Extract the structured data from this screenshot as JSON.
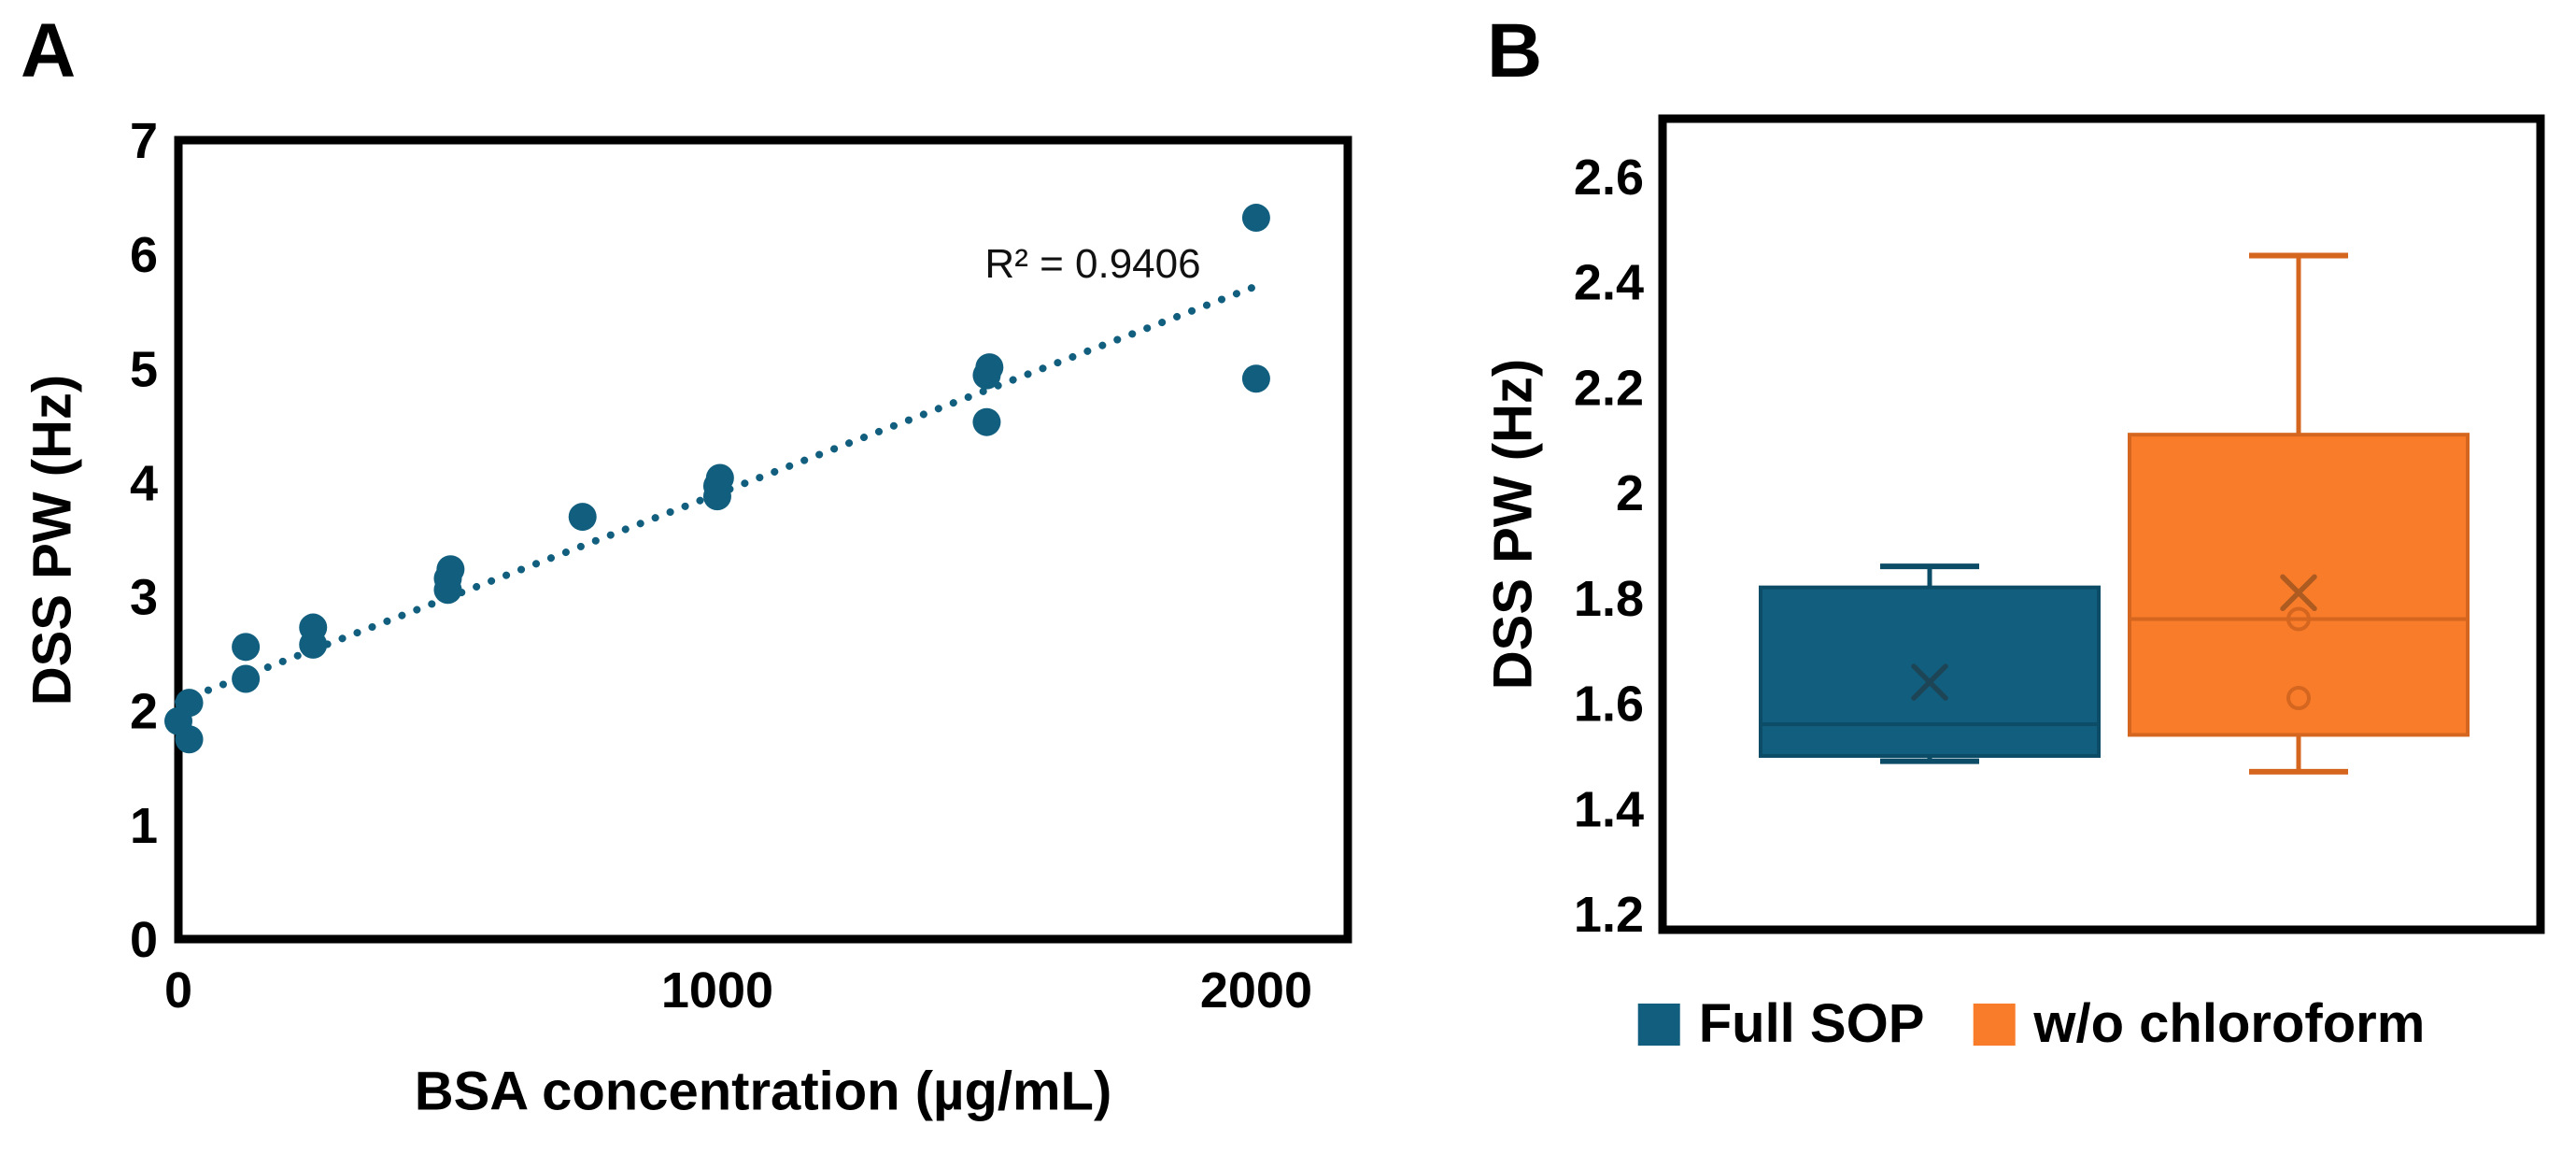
{
  "figure": {
    "background": "#ffffff",
    "colors": {
      "teal": "#115E7E",
      "teal_border": "#0C4C66",
      "teal_mean": "#1E4556",
      "orange": "#F87C2A",
      "orange_border": "#D5661F",
      "orange_mean": "#AE5B21",
      "axis": "#000000",
      "text": "#000000"
    }
  },
  "panel_a": {
    "label": "A",
    "y_axis_title": "DSS PW (Hz)",
    "x_axis_title": "BSA concentration (µg/mL)",
    "annotation_r2": "R² = 0.9406",
    "chart_data": {
      "type": "scatter",
      "title": "",
      "xlabel": "BSA concentration (µg/mL)",
      "ylabel": "DSS PW (Hz)",
      "xlim": [
        0,
        2170
      ],
      "ylim": [
        0,
        7
      ],
      "x_ticks": [
        0,
        1000,
        2000
      ],
      "y_ticks": [
        0,
        1,
        2,
        3,
        4,
        5,
        6,
        7
      ],
      "grid": false,
      "r_squared": 0.9406,
      "points": [
        [
          0,
          1.91
        ],
        [
          20,
          2.07
        ],
        [
          20,
          1.75
        ],
        [
          125,
          2.28
        ],
        [
          125,
          2.56
        ],
        [
          250,
          2.58
        ],
        [
          250,
          2.73
        ],
        [
          500,
          3.06
        ],
        [
          500,
          3.16
        ],
        [
          505,
          3.24
        ],
        [
          750,
          3.7
        ],
        [
          1000,
          3.88
        ],
        [
          1000,
          3.97
        ],
        [
          1005,
          4.04
        ],
        [
          1500,
          4.53
        ],
        [
          1500,
          4.94
        ],
        [
          1505,
          5.01
        ],
        [
          2000,
          4.91
        ],
        [
          2000,
          6.32
        ]
      ],
      "trendline": {
        "style": "dotted",
        "x_start": 0,
        "y_start": 2.08,
        "x_end": 2005,
        "y_end": 5.73
      }
    }
  },
  "panel_b": {
    "label": "B",
    "y_axis_title": "DSS PW (Hz)",
    "chart_data": {
      "type": "box",
      "ylabel": "DSS PW (Hz)",
      "ylim": [
        1.17,
        2.71
      ],
      "y_ticks": [
        1.2,
        1.4,
        1.6,
        1.8,
        2,
        2.2,
        2.4,
        2.6
      ],
      "grid": false,
      "legend_position": "bottom",
      "series": [
        {
          "name": "Full SOP",
          "color": "teal",
          "whisker_low": 1.49,
          "q1": 1.5,
          "median": 1.56,
          "q3": 1.82,
          "whisker_high": 1.86,
          "mean": 1.64,
          "outlier_points": []
        },
        {
          "name": "w/o chloroform",
          "color": "orange",
          "whisker_low": 1.47,
          "q1": 1.54,
          "median": 1.76,
          "q3": 2.11,
          "whisker_high": 2.45,
          "mean": 1.81,
          "outlier_points": [
            1.76,
            1.61
          ]
        }
      ]
    },
    "legend": [
      {
        "label": "Full SOP",
        "color": "teal"
      },
      {
        "label": "w/o chloroform",
        "color": "orange"
      }
    ]
  }
}
